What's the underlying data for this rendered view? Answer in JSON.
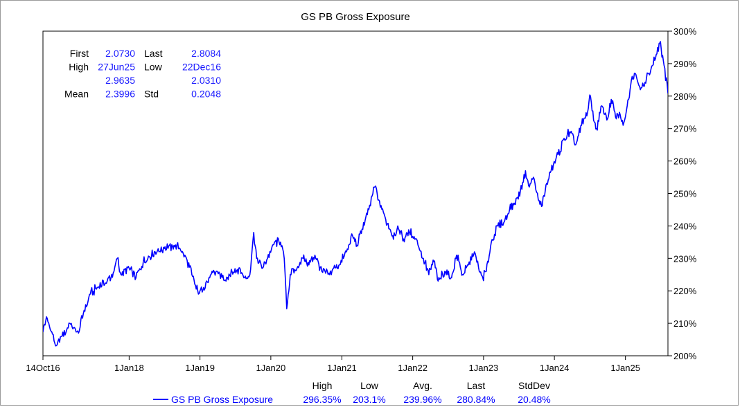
{
  "chart_data": {
    "type": "line",
    "title": "GS PB Gross Exposure",
    "xlabel": "",
    "ylabel": "",
    "x_ticks": [
      "14Oct16",
      "1Jan18",
      "1Jan19",
      "1Jan20",
      "1Jan21",
      "1Jan22",
      "1Jan23",
      "1Jan24",
      "1Jan25"
    ],
    "x_tick_dates": [
      "2016-10-14",
      "2018-01-01",
      "2019-01-01",
      "2020-01-01",
      "2021-01-01",
      "2022-01-01",
      "2023-01-01",
      "2024-01-01",
      "2025-01-01"
    ],
    "x_range": [
      "2016-10-14",
      "2025-08-08"
    ],
    "y_ticks": [
      "200%",
      "210%",
      "220%",
      "230%",
      "240%",
      "250%",
      "260%",
      "270%",
      "280%",
      "290%",
      "300%"
    ],
    "ylim": [
      2.0,
      3.0
    ],
    "y_axis_side": "right",
    "grid": false,
    "series": [
      {
        "name": "GS PB Gross Exposure",
        "color": "#0000ff",
        "points": [
          [
            "2016-10-14",
            2.073
          ],
          [
            "2016-11-01",
            2.12
          ],
          [
            "2016-12-22",
            2.031
          ],
          [
            "2017-01-20",
            2.06
          ],
          [
            "2017-03-01",
            2.1
          ],
          [
            "2017-04-15",
            2.07
          ],
          [
            "2017-05-10",
            2.13
          ],
          [
            "2017-06-15",
            2.19
          ],
          [
            "2017-07-20",
            2.21
          ],
          [
            "2017-09-10",
            2.23
          ],
          [
            "2017-10-15",
            2.26
          ],
          [
            "2017-11-01",
            2.3
          ],
          [
            "2017-11-20",
            2.25
          ],
          [
            "2018-01-01",
            2.27
          ],
          [
            "2018-02-05",
            2.24
          ],
          [
            "2018-03-15",
            2.29
          ],
          [
            "2018-05-15",
            2.32
          ],
          [
            "2018-07-01",
            2.33
          ],
          [
            "2018-08-20",
            2.34
          ],
          [
            "2018-09-20",
            2.33
          ],
          [
            "2018-10-15",
            2.31
          ],
          [
            "2018-11-20",
            2.25
          ],
          [
            "2018-12-24",
            2.19
          ],
          [
            "2019-01-20",
            2.21
          ],
          [
            "2019-02-20",
            2.24
          ],
          [
            "2019-04-01",
            2.26
          ],
          [
            "2019-05-15",
            2.23
          ],
          [
            "2019-06-15",
            2.26
          ],
          [
            "2019-07-20",
            2.27
          ],
          [
            "2019-08-15",
            2.24
          ],
          [
            "2019-09-15",
            2.25
          ],
          [
            "2019-10-05",
            2.38
          ],
          [
            "2019-10-20",
            2.3
          ],
          [
            "2019-11-20",
            2.27
          ],
          [
            "2019-12-15",
            2.3
          ],
          [
            "2020-01-20",
            2.35
          ],
          [
            "2020-02-20",
            2.35
          ],
          [
            "2020-03-10",
            2.3
          ],
          [
            "2020-03-23",
            2.145
          ],
          [
            "2020-04-10",
            2.25
          ],
          [
            "2020-05-15",
            2.27
          ],
          [
            "2020-06-15",
            2.3
          ],
          [
            "2020-07-15",
            2.28
          ],
          [
            "2020-08-15",
            2.31
          ],
          [
            "2020-09-20",
            2.26
          ],
          [
            "2020-10-30",
            2.25
          ],
          [
            "2020-11-20",
            2.27
          ],
          [
            "2020-12-20",
            2.28
          ],
          [
            "2021-01-25",
            2.32
          ],
          [
            "2021-02-25",
            2.37
          ],
          [
            "2021-03-20",
            2.34
          ],
          [
            "2021-04-15",
            2.39
          ],
          [
            "2021-05-20",
            2.45
          ],
          [
            "2021-06-10",
            2.5
          ],
          [
            "2021-06-20",
            2.52
          ],
          [
            "2021-07-10",
            2.48
          ],
          [
            "2021-08-15",
            2.42
          ],
          [
            "2021-09-20",
            2.37
          ],
          [
            "2021-10-20",
            2.39
          ],
          [
            "2021-11-15",
            2.36
          ],
          [
            "2021-12-15",
            2.38
          ],
          [
            "2022-01-20",
            2.36
          ],
          [
            "2022-02-25",
            2.3
          ],
          [
            "2022-03-25",
            2.25
          ],
          [
            "2022-04-20",
            2.29
          ],
          [
            "2022-05-12",
            2.23
          ],
          [
            "2022-06-15",
            2.26
          ],
          [
            "2022-07-20",
            2.24
          ],
          [
            "2022-08-15",
            2.31
          ],
          [
            "2022-09-15",
            2.25
          ],
          [
            "2022-10-15",
            2.28
          ],
          [
            "2022-11-15",
            2.32
          ],
          [
            "2022-12-10",
            2.26
          ],
          [
            "2022-12-28",
            2.24
          ],
          [
            "2023-01-15",
            2.26
          ],
          [
            "2023-02-10",
            2.35
          ],
          [
            "2023-03-15",
            2.4
          ],
          [
            "2023-04-15",
            2.41
          ],
          [
            "2023-05-15",
            2.45
          ],
          [
            "2023-06-10",
            2.47
          ],
          [
            "2023-07-10",
            2.51
          ],
          [
            "2023-08-05",
            2.57
          ],
          [
            "2023-08-25",
            2.52
          ],
          [
            "2023-09-15",
            2.55
          ],
          [
            "2023-10-10",
            2.48
          ],
          [
            "2023-10-27",
            2.46
          ],
          [
            "2023-11-15",
            2.51
          ],
          [
            "2023-12-15",
            2.57
          ],
          [
            "2024-01-20",
            2.62
          ],
          [
            "2024-02-20",
            2.67
          ],
          [
            "2024-03-20",
            2.69
          ],
          [
            "2024-04-20",
            2.65
          ],
          [
            "2024-05-20",
            2.71
          ],
          [
            "2024-06-20",
            2.75
          ],
          [
            "2024-07-05",
            2.8
          ],
          [
            "2024-07-25",
            2.72
          ],
          [
            "2024-08-05",
            2.7
          ],
          [
            "2024-09-01",
            2.77
          ],
          [
            "2024-10-01",
            2.73
          ],
          [
            "2024-10-20",
            2.79
          ],
          [
            "2024-11-15",
            2.73
          ],
          [
            "2024-12-01",
            2.75
          ],
          [
            "2024-12-20",
            2.71
          ],
          [
            "2025-01-10",
            2.77
          ],
          [
            "2025-02-01",
            2.85
          ],
          [
            "2025-02-20",
            2.87
          ],
          [
            "2025-03-15",
            2.83
          ],
          [
            "2025-04-08",
            2.83
          ],
          [
            "2025-05-01",
            2.87
          ],
          [
            "2025-06-01",
            2.91
          ],
          [
            "2025-06-27",
            2.9635
          ],
          [
            "2025-07-15",
            2.91
          ],
          [
            "2025-08-08",
            2.8084
          ]
        ]
      }
    ],
    "stats_box": {
      "rows": [
        {
          "label": "First",
          "value": "2.0730",
          "label2": "Last",
          "value2": "2.8084"
        },
        {
          "label": "High",
          "value": "27Jun25",
          "label2": "Low",
          "value2": "22Dec16"
        },
        {
          "label": "",
          "value": "2.9635",
          "label2": "",
          "value2": "2.0310"
        },
        {
          "label": "Mean",
          "value": "2.3996",
          "label2": "Std",
          "value2": "0.2048"
        }
      ]
    },
    "legend": {
      "placement": "bottom",
      "headers": [
        "High",
        "Low",
        "Avg.",
        "Last",
        "StdDev"
      ],
      "name": "GS PB Gross Exposure",
      "values": [
        "296.35%",
        "203.1%",
        "239.96%",
        "280.84%",
        "20.48%"
      ]
    }
  }
}
